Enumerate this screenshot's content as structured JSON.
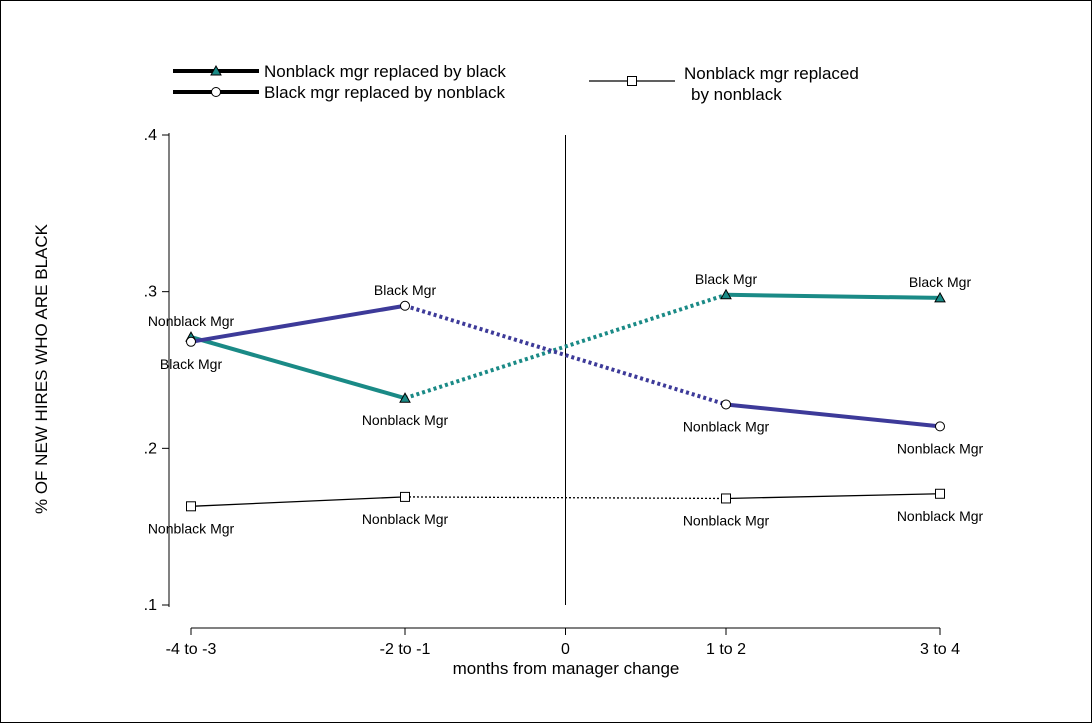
{
  "chart_data": {
    "type": "line",
    "xlabel": "months from manager change",
    "ylabel": "% OF NEW HIRES WHO ARE BLACK",
    "x_ticks": [
      {
        "value": -3.5,
        "label": "-4 to -3"
      },
      {
        "value": -1.5,
        "label": "-2 to -1"
      },
      {
        "value": 0,
        "label": "0"
      },
      {
        "value": 1.5,
        "label": "1 to 2"
      },
      {
        "value": 3.5,
        "label": "3 to 4"
      }
    ],
    "y_ticks": [
      {
        "value": 0.1,
        "label": ".1"
      },
      {
        "value": 0.2,
        "label": ".2"
      },
      {
        "value": 0.3,
        "label": ".3"
      },
      {
        "value": 0.4,
        "label": ".4"
      }
    ],
    "xlim": [
      -3.5,
      3.5
    ],
    "ylim": [
      0.1,
      0.4
    ],
    "vertical_line_x": 0,
    "grid": false,
    "legend_position": "top",
    "series": [
      {
        "name": "Nonblack mgr replaced by black",
        "color": "#1a8a86",
        "marker": "triangle",
        "points": [
          {
            "x": -3.5,
            "y": 0.271,
            "label": "Nonblack Mgr",
            "label_pos": "above"
          },
          {
            "x": -1.5,
            "y": 0.232,
            "label": "Nonblack Mgr",
            "label_pos": "below"
          },
          {
            "x": 1.5,
            "y": 0.298,
            "label": "Black Mgr",
            "label_pos": "above"
          },
          {
            "x": 3.5,
            "y": 0.296,
            "label": "Black Mgr",
            "label_pos": "above"
          }
        ]
      },
      {
        "name": "Black mgr replaced by nonblack",
        "color": "#3d3a99",
        "marker": "circle",
        "points": [
          {
            "x": -3.5,
            "y": 0.268,
            "label": "Black Mgr",
            "label_pos": "below"
          },
          {
            "x": -1.5,
            "y": 0.291,
            "label": "Black Mgr",
            "label_pos": "above"
          },
          {
            "x": 1.5,
            "y": 0.228,
            "label": "Nonblack Mgr",
            "label_pos": "below"
          },
          {
            "x": 3.5,
            "y": 0.214,
            "label": "Nonblack Mgr",
            "label_pos": "below"
          }
        ]
      },
      {
        "name": "Nonblack mgr replaced by nonblack",
        "name_lines": [
          "Nonblack mgr replaced",
          "by nonblack"
        ],
        "color": "#000000",
        "marker": "square",
        "points": [
          {
            "x": -3.5,
            "y": 0.163,
            "label": "Nonblack Mgr",
            "label_pos": "below"
          },
          {
            "x": -1.5,
            "y": 0.169,
            "label": "Nonblack Mgr",
            "label_pos": "below"
          },
          {
            "x": 1.5,
            "y": 0.168,
            "label": "Nonblack Mgr",
            "label_pos": "below"
          },
          {
            "x": 3.5,
            "y": 0.171,
            "label": "Nonblack Mgr",
            "label_pos": "below"
          }
        ]
      }
    ]
  }
}
